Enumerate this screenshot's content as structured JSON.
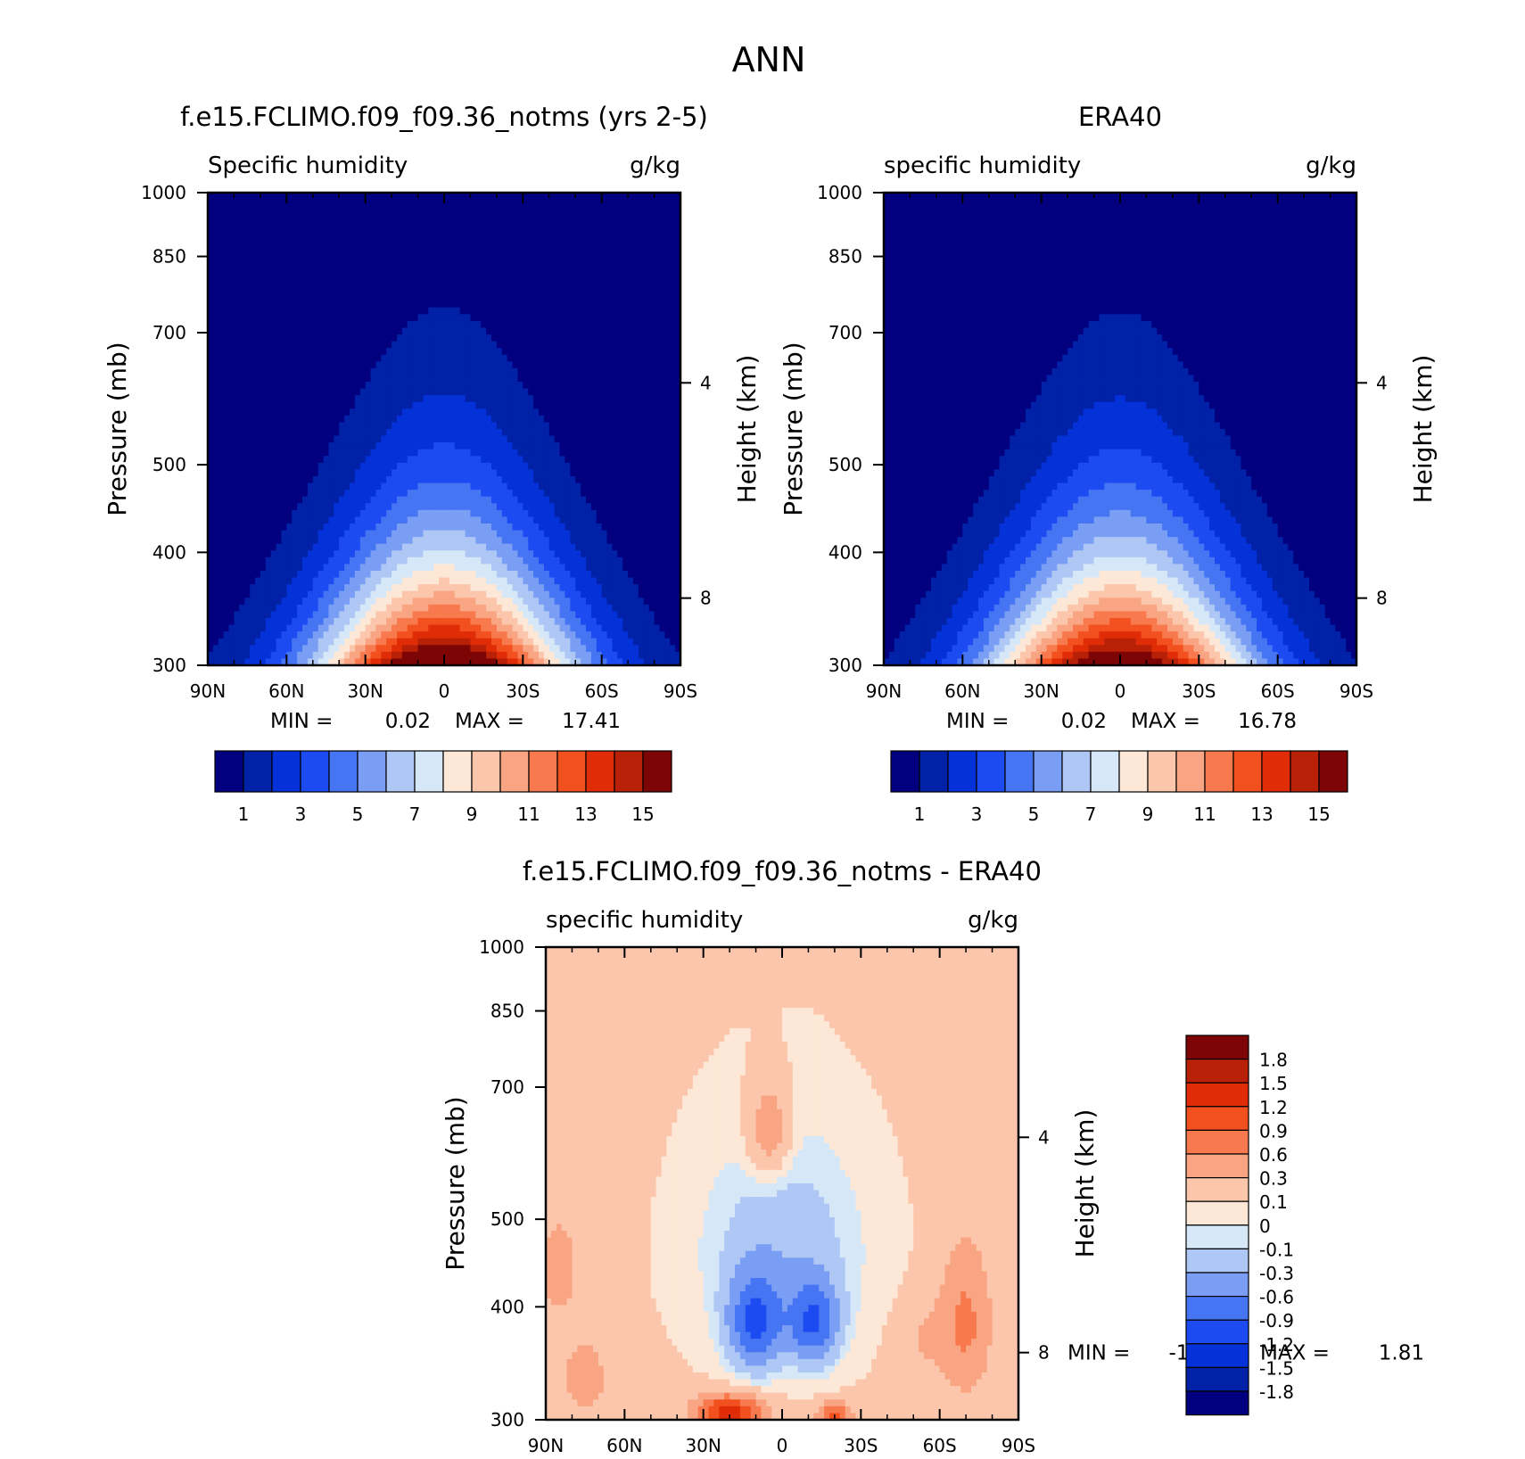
{
  "figure_title": "ANN",
  "lat_ticks": [
    "90N",
    "60N",
    "30N",
    "0",
    "30S",
    "60S",
    "90S"
  ],
  "pressure_ticks": [
    "300",
    "400",
    "500",
    "700",
    "850",
    "1000"
  ],
  "height_ticks": [
    "8",
    "4"
  ],
  "y_axis_label": "Pressure (mb)",
  "y2_axis_label": "Height (km)",
  "stat_labels": {
    "min": "MIN =",
    "max": "MAX ="
  },
  "colors": {
    "abs_scale": [
      "#02007f",
      "#0121a7",
      "#0432d8",
      "#1d4bf2",
      "#4675f3",
      "#7a9ef4",
      "#afc7f5",
      "#d6e8f8",
      "#fde8d7",
      "#fbc6ab",
      "#f9a482",
      "#f7794d",
      "#f35020",
      "#e02c07",
      "#b82007",
      "#7d0505"
    ],
    "diff_scale": [
      "#02007f",
      "#0121a7",
      "#0432d8",
      "#1d4bf2",
      "#4675f3",
      "#7a9ef4",
      "#afc7f5",
      "#d6e8f8",
      "#fde8d7",
      "#fbc6ab",
      "#f9a482",
      "#f7794d",
      "#f35020",
      "#e02c07",
      "#b82007",
      "#7d0505"
    ]
  },
  "chart_data": [
    {
      "type": "heatmap",
      "title": "f.e15.FCLIMO.f09_f09.36_notms (yrs 2-5)",
      "variable": "Specific humidity",
      "units": "g/kg",
      "xlabel_ticks": [
        "90N",
        "60N",
        "30N",
        "0",
        "30S",
        "60S",
        "90S"
      ],
      "ylabel": "Pressure (mb)",
      "y2label": "Height (km)",
      "ylim": [
        1000,
        300
      ],
      "y_scale": "log",
      "min": "0.02",
      "max": "17.41",
      "colorbar_labels": [
        "1",
        "3",
        "5",
        "7",
        "9",
        "11",
        "13",
        "15"
      ],
      "contour_levels": [
        1,
        2,
        3,
        4,
        5,
        6,
        7,
        8,
        9,
        10,
        11,
        12,
        13,
        14,
        15
      ],
      "equator_surface_max": 17.41
    },
    {
      "type": "heatmap",
      "title": "ERA40",
      "variable": "specific humidity",
      "units": "g/kg",
      "xlabel_ticks": [
        "90N",
        "60N",
        "30N",
        "0",
        "30S",
        "60S",
        "90S"
      ],
      "ylabel": "Pressure (mb)",
      "y2label": "Height (km)",
      "ylim": [
        1000,
        300
      ],
      "y_scale": "log",
      "min": "0.02",
      "max": "16.78",
      "colorbar_labels": [
        "1",
        "3",
        "5",
        "7",
        "9",
        "11",
        "13",
        "15"
      ],
      "contour_levels": [
        1,
        2,
        3,
        4,
        5,
        6,
        7,
        8,
        9,
        10,
        11,
        12,
        13,
        14,
        15
      ],
      "equator_surface_max": 16.78
    },
    {
      "type": "heatmap",
      "title": "f.e15.FCLIMO.f09_f09.36_notms - ERA40",
      "variable": "specific humidity",
      "units": "g/kg",
      "xlabel_ticks": [
        "90N",
        "60N",
        "30N",
        "0",
        "30S",
        "60S",
        "90S"
      ],
      "ylabel": "Pressure (mb)",
      "y2label": "Height (km)",
      "ylim": [
        1000,
        300
      ],
      "y_scale": "log",
      "min": "-1.03",
      "max": "1.81",
      "colorbar_labels": [
        "1.8",
        "1.5",
        "1.2",
        "0.9",
        "0.6",
        "0.3",
        "0.1",
        "0",
        "-0.1",
        "-0.3",
        "-0.6",
        "-0.9",
        "-1.2",
        "-1.5",
        "-1.8"
      ],
      "contour_levels": [
        -1.8,
        -1.5,
        -1.2,
        -0.9,
        -0.6,
        -0.3,
        -0.1,
        0,
        0.1,
        0.3,
        0.6,
        0.9,
        1.2,
        1.5,
        1.8
      ]
    }
  ]
}
